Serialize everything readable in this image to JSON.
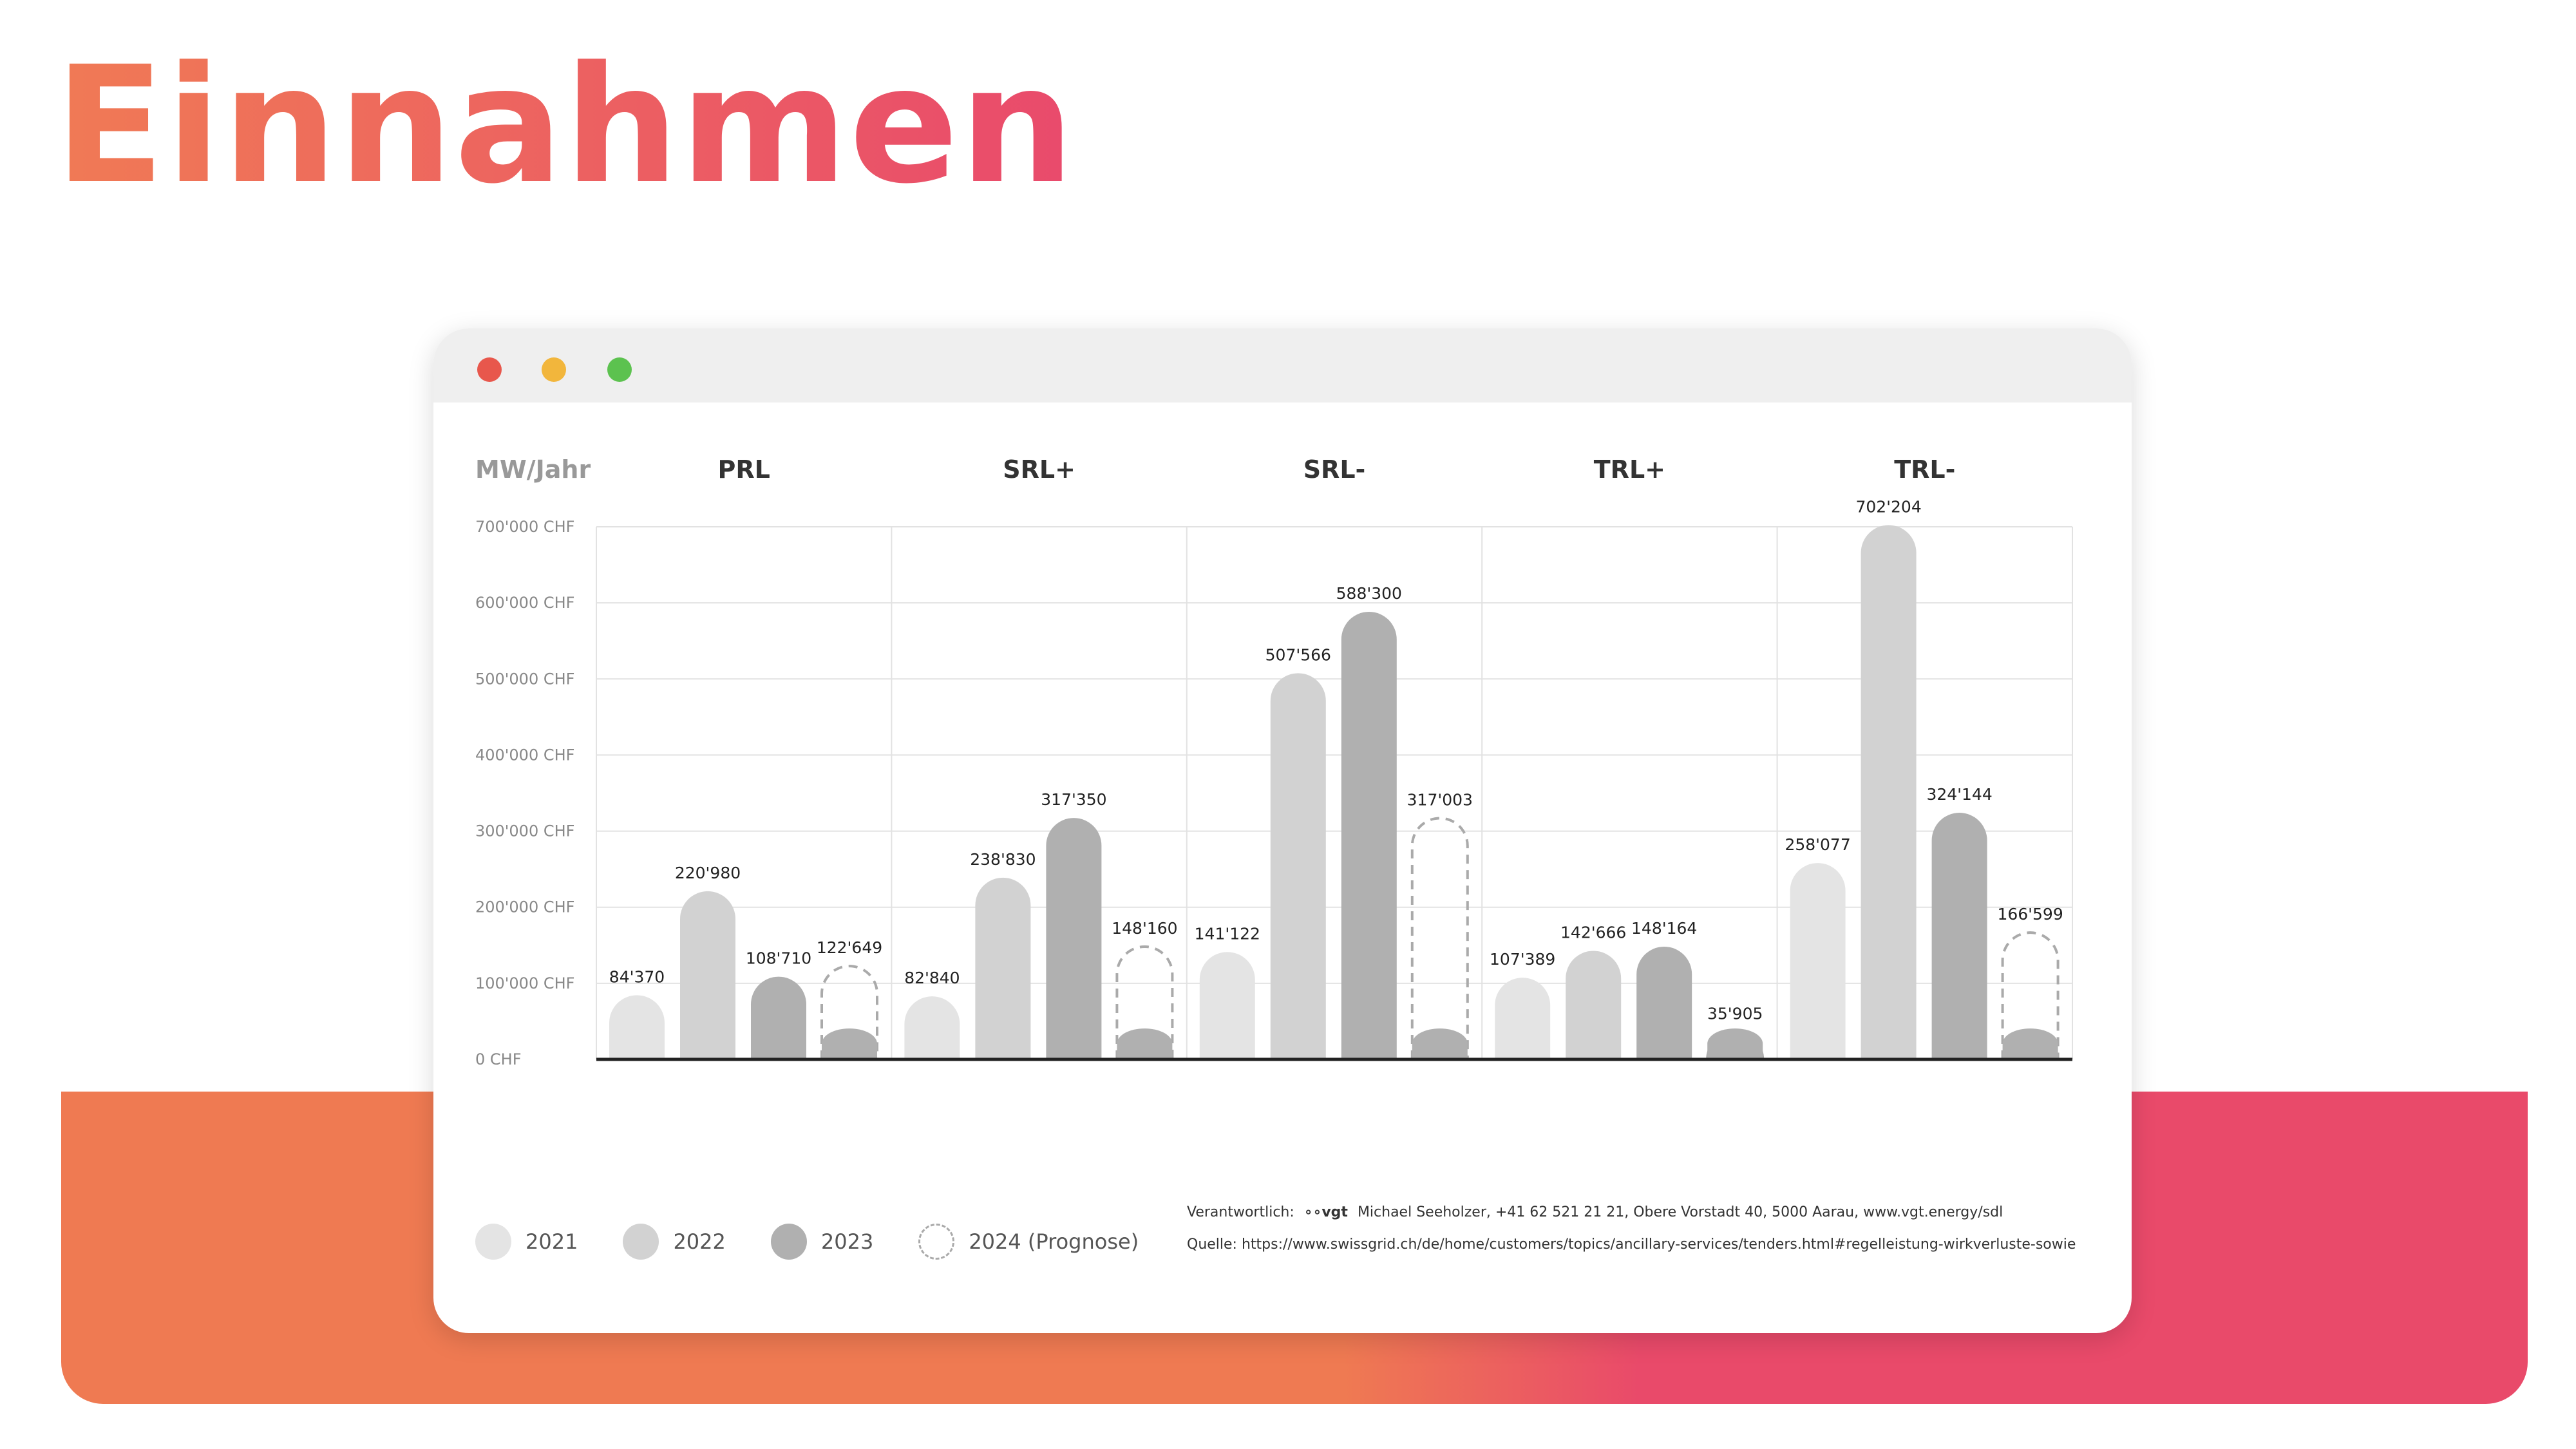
{
  "page": {
    "title": "Einnahmen",
    "accent_from": "#f07a55",
    "accent_to": "#e94a6c"
  },
  "window": {
    "dot_colors": [
      "#e8574c",
      "#f2b63c",
      "#5cc24f"
    ]
  },
  "chart_data": {
    "type": "bar",
    "unit_label": "MW/Jahr",
    "groups": [
      "PRL",
      "SRL+",
      "SRL-",
      "TRL+",
      "TRL-"
    ],
    "series": [
      {
        "name": "2021",
        "color": "#e4e4e4",
        "style": "solid",
        "values": [
          84370,
          82840,
          141122,
          107389,
          258077
        ],
        "labels": [
          "84'370",
          "82'840",
          "141'122",
          "107'389",
          "258'077"
        ]
      },
      {
        "name": "2022",
        "color": "#d2d2d2",
        "style": "solid",
        "values": [
          220980,
          238830,
          507566,
          142666,
          702204
        ],
        "labels": [
          "220'980",
          "238'830",
          "507'566",
          "142'666",
          "702'204"
        ]
      },
      {
        "name": "2023",
        "color": "#b0b0b0",
        "style": "solid",
        "values": [
          108710,
          317350,
          588300,
          148164,
          324144
        ],
        "labels": [
          "108'710",
          "317'350",
          "588'300",
          "148'164",
          "324'144"
        ]
      },
      {
        "name": "2024 (Prognose)",
        "color": "#aaaaaa",
        "style": "dashed",
        "values": [
          122649,
          148160,
          317003,
          35905,
          166599
        ],
        "labels": [
          "122'649",
          "148'160",
          "317'003",
          "35'905",
          "166'599"
        ]
      }
    ],
    "y_ticks": [
      {
        "value": 0,
        "label": "0 CHF"
      },
      {
        "value": 100000,
        "label": "100'000 CHF"
      },
      {
        "value": 200000,
        "label": "200'000 CHF"
      },
      {
        "value": 300000,
        "label": "300'000 CHF"
      },
      {
        "value": 400000,
        "label": "400'000 CHF"
      },
      {
        "value": 500000,
        "label": "500'000 CHF"
      },
      {
        "value": 600000,
        "label": "600'000 CHF"
      },
      {
        "value": 700000,
        "label": "700'000 CHF"
      }
    ],
    "ylim": [
      0,
      700000
    ],
    "grid": true,
    "legend_position": "bottom-left"
  },
  "footer": {
    "responsible_label": "Verantwortlich:",
    "vgt_logo": "vgt",
    "responsible_text": "Michael Seeholzer, +41 62 521 21 21, Obere Vorstadt 40, 5000 Aarau, www.vgt.energy/sdl",
    "source_text": "Quelle: https://www.swissgrid.ch/de/home/customers/topics/ancillary-services/tenders.html#regelleistung-wirkverluste-sowie"
  }
}
